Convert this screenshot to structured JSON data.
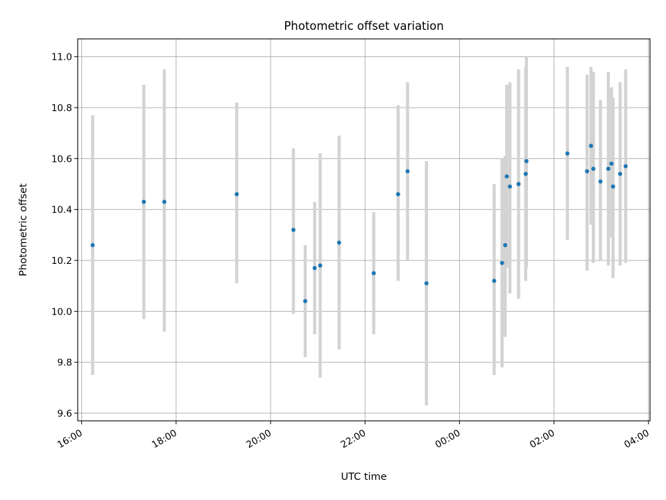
{
  "chart_data": {
    "type": "scatter",
    "title": "Photometric offset variation",
    "xlabel": "UTC time",
    "ylabel": "Photometric offset",
    "x_axis_kind": "time",
    "x_start": "2023-01-01T16:00",
    "xlim": [
      "15:55",
      "04:02"
    ],
    "ylim": [
      9.57,
      11.07
    ],
    "x_ticks": [
      "16:00",
      "18:00",
      "20:00",
      "22:00",
      "00:00",
      "02:00",
      "04:00"
    ],
    "y_ticks": [
      "9.6",
      "9.8",
      "10.0",
      "10.2",
      "10.4",
      "10.6",
      "10.8",
      "11.0"
    ],
    "grid": true,
    "colors": {
      "points": "#1f77b4",
      "errorbars": "#d3d3d3",
      "grid": "#b0b0b0"
    },
    "series": [
      {
        "points": [
          {
            "x": "16:14",
            "y": 10.26,
            "ylow": 9.75,
            "yhigh": 10.77
          },
          {
            "x": "17:19",
            "y": 10.43,
            "ylow": 9.97,
            "yhigh": 10.89
          },
          {
            "x": "17:45",
            "y": 10.43,
            "ylow": 9.92,
            "yhigh": 10.95
          },
          {
            "x": "19:17",
            "y": 10.46,
            "ylow": 10.11,
            "yhigh": 10.82
          },
          {
            "x": "20:29",
            "y": 10.32,
            "ylow": 9.99,
            "yhigh": 10.64
          },
          {
            "x": "20:44",
            "y": 10.04,
            "ylow": 9.82,
            "yhigh": 10.26
          },
          {
            "x": "20:56",
            "y": 10.17,
            "ylow": 9.91,
            "yhigh": 10.43
          },
          {
            "x": "21:03",
            "y": 10.18,
            "ylow": 9.74,
            "yhigh": 10.62
          },
          {
            "x": "21:27",
            "y": 10.27,
            "ylow": 9.85,
            "yhigh": 10.69
          },
          {
            "x": "22:11",
            "y": 10.15,
            "ylow": 9.91,
            "yhigh": 10.39
          },
          {
            "x": "22:42",
            "y": 10.46,
            "ylow": 10.12,
            "yhigh": 10.81
          },
          {
            "x": "22:54",
            "y": 10.55,
            "ylow": 10.2,
            "yhigh": 10.9
          },
          {
            "x": "23:18",
            "y": 10.11,
            "ylow": 9.63,
            "yhigh": 10.59
          },
          {
            "x": "00:44",
            "y": 10.12,
            "ylow": 9.75,
            "yhigh": 10.5
          },
          {
            "x": "00:54",
            "y": 10.19,
            "ylow": 9.78,
            "yhigh": 10.6
          },
          {
            "x": "00:58",
            "y": 10.26,
            "ylow": 9.9,
            "yhigh": 10.61
          },
          {
            "x": "01:00",
            "y": 10.53,
            "ylow": 10.17,
            "yhigh": 10.89
          },
          {
            "x": "01:04",
            "y": 10.49,
            "ylow": 10.07,
            "yhigh": 10.9
          },
          {
            "x": "01:15",
            "y": 10.5,
            "ylow": 10.05,
            "yhigh": 10.95
          },
          {
            "x": "01:24",
            "y": 10.54,
            "ylow": 10.12,
            "yhigh": 10.96
          },
          {
            "x": "01:25",
            "y": 10.59,
            "ylow": 10.17,
            "yhigh": 11.0
          },
          {
            "x": "02:17",
            "y": 10.62,
            "ylow": 10.28,
            "yhigh": 10.96
          },
          {
            "x": "02:42",
            "y": 10.55,
            "ylow": 10.16,
            "yhigh": 10.93
          },
          {
            "x": "02:47",
            "y": 10.65,
            "ylow": 10.34,
            "yhigh": 10.96
          },
          {
            "x": "02:50",
            "y": 10.56,
            "ylow": 10.19,
            "yhigh": 10.94
          },
          {
            "x": "02:59",
            "y": 10.51,
            "ylow": 10.2,
            "yhigh": 10.83
          },
          {
            "x": "03:09",
            "y": 10.56,
            "ylow": 10.18,
            "yhigh": 10.94
          },
          {
            "x": "03:13",
            "y": 10.58,
            "ylow": 10.29,
            "yhigh": 10.88
          },
          {
            "x": "03:15",
            "y": 10.49,
            "ylow": 10.13,
            "yhigh": 10.84
          },
          {
            "x": "03:24",
            "y": 10.54,
            "ylow": 10.18,
            "yhigh": 10.9
          },
          {
            "x": "03:31",
            "y": 10.57,
            "ylow": 10.19,
            "yhigh": 10.95
          }
        ]
      }
    ]
  }
}
